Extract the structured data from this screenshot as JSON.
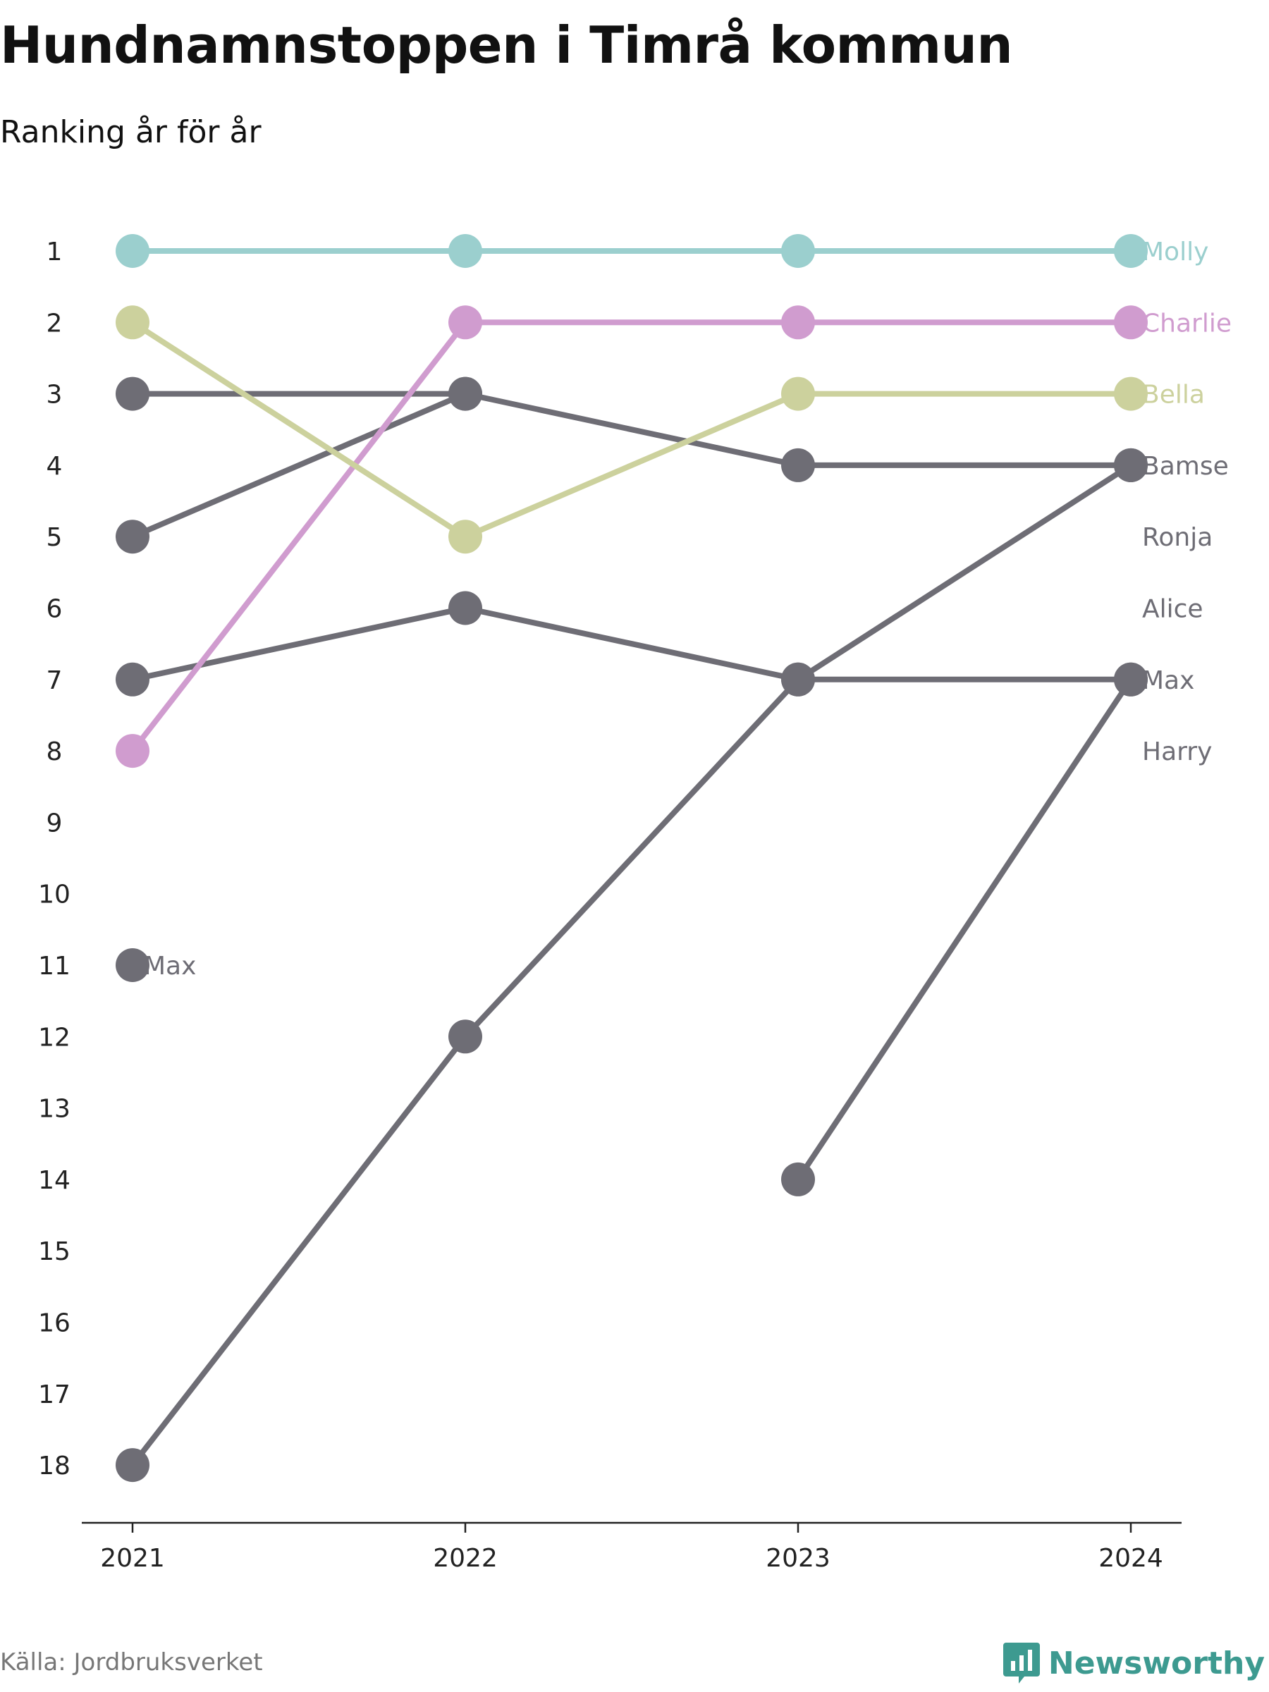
{
  "chart_data": {
    "type": "line",
    "title": "Hundnamnstoppen i Timrå kommun",
    "subtitle": "Ranking år för år",
    "x": [
      2021,
      2022,
      2023,
      2024
    ],
    "y_ticks": [
      1,
      2,
      3,
      4,
      5,
      6,
      7,
      8,
      9,
      10,
      11,
      12,
      13,
      14,
      15,
      16,
      17,
      18
    ],
    "ylim": [
      1,
      18
    ],
    "y_reversed": true,
    "grid": false,
    "series": [
      {
        "name": "Molly",
        "color": "#9bcfce",
        "values": [
          1,
          1,
          1,
          1
        ]
      },
      {
        "name": "Charlie",
        "color": "#d09ccf",
        "values": [
          8,
          2,
          2,
          2
        ]
      },
      {
        "name": "Bella",
        "color": "#ccd19d",
        "values": [
          2,
          5,
          3,
          3
        ]
      },
      {
        "name": "Bamse",
        "color": "#6e6d75",
        "values": [
          3,
          3,
          4,
          4
        ]
      },
      {
        "name": "Ronja",
        "color": "#6e6d75",
        "values": [
          5,
          3,
          null,
          null
        ]
      },
      {
        "name": "Alice",
        "color": "#6e6d75",
        "values": [
          7,
          6,
          7,
          7
        ]
      },
      {
        "name": "Max",
        "color": "#6e6d75",
        "values": [
          11,
          null,
          null,
          null
        ]
      },
      {
        "name": "Harry",
        "color": "#6e6d75",
        "values": [
          18,
          12,
          7,
          4
        ]
      },
      {
        "name": "",
        "color": "#6e6d75",
        "values": [
          null,
          null,
          14,
          7
        ]
      }
    ],
    "end_labels": [
      {
        "text": "Molly",
        "color": "#9bcfce"
      },
      {
        "text": "Charlie",
        "color": "#d09ccf"
      },
      {
        "text": "Bella",
        "color": "#ccd19d"
      },
      {
        "text": "Bamse",
        "color": "#6e6d75"
      },
      {
        "text": "Ronja",
        "color": "#6e6d75"
      },
      {
        "text": "Alice",
        "color": "#6e6d75"
      },
      {
        "text": "Max",
        "color": "#6e6d75"
      },
      {
        "text": "Harry",
        "color": "#6e6d75"
      }
    ],
    "start_label": {
      "text": "Max",
      "year": 2021,
      "rank": 11,
      "color": "#6e6d75"
    }
  },
  "footer": {
    "source": "Källa: Jordbruksverket",
    "brand": "Newsworthy",
    "brand_color": "#3d9a90",
    "brand_icon": "bar-chart-speech-bubble-icon"
  }
}
